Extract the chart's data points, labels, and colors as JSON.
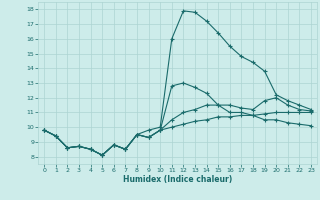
{
  "xlabel": "Humidex (Indice chaleur)",
  "background_color": "#cdecea",
  "grid_color": "#add4d2",
  "line_color": "#1a6b6b",
  "xlim": [
    -0.5,
    23.5
  ],
  "ylim": [
    7.5,
    18.5
  ],
  "yticks": [
    8,
    9,
    10,
    11,
    12,
    13,
    14,
    15,
    16,
    17,
    18
  ],
  "xticks": [
    0,
    1,
    2,
    3,
    4,
    5,
    6,
    7,
    8,
    9,
    10,
    11,
    12,
    13,
    14,
    15,
    16,
    17,
    18,
    19,
    20,
    21,
    22,
    23
  ],
  "line1_x": [
    0,
    1,
    2,
    3,
    4,
    5,
    6,
    7,
    8,
    9,
    10,
    11,
    12,
    13,
    14,
    15,
    16,
    17,
    18,
    19,
    20,
    21,
    22,
    23
  ],
  "line1_y": [
    9.8,
    9.4,
    8.6,
    8.7,
    8.5,
    8.1,
    8.8,
    8.5,
    9.5,
    9.8,
    10.0,
    16.0,
    17.9,
    17.8,
    17.2,
    16.4,
    15.5,
    14.8,
    14.4,
    13.8,
    12.2,
    11.8,
    11.5,
    11.2
  ],
  "line2_x": [
    0,
    1,
    2,
    3,
    4,
    5,
    6,
    7,
    8,
    9,
    10,
    11,
    12,
    13,
    14,
    15,
    16,
    17,
    18,
    19,
    20,
    21,
    22,
    23
  ],
  "line2_y": [
    9.8,
    9.4,
    8.6,
    8.7,
    8.5,
    8.1,
    8.8,
    8.5,
    9.5,
    9.3,
    9.8,
    12.8,
    13.0,
    12.7,
    12.3,
    11.5,
    11.0,
    11.0,
    10.8,
    10.5,
    10.5,
    10.3,
    10.2,
    10.1
  ],
  "line3_x": [
    0,
    1,
    2,
    3,
    4,
    5,
    6,
    7,
    8,
    9,
    10,
    11,
    12,
    13,
    14,
    15,
    16,
    17,
    18,
    19,
    20,
    21,
    22,
    23
  ],
  "line3_y": [
    9.8,
    9.4,
    8.6,
    8.7,
    8.5,
    8.1,
    8.8,
    8.5,
    9.5,
    9.3,
    9.8,
    10.5,
    11.0,
    11.2,
    11.5,
    11.5,
    11.5,
    11.3,
    11.2,
    11.8,
    12.0,
    11.5,
    11.2,
    11.1
  ],
  "line4_x": [
    0,
    1,
    2,
    3,
    4,
    5,
    6,
    7,
    8,
    9,
    10,
    11,
    12,
    13,
    14,
    15,
    16,
    17,
    18,
    19,
    20,
    21,
    22,
    23
  ],
  "line4_y": [
    9.8,
    9.4,
    8.6,
    8.7,
    8.5,
    8.1,
    8.8,
    8.5,
    9.5,
    9.3,
    9.8,
    10.0,
    10.2,
    10.4,
    10.5,
    10.7,
    10.7,
    10.8,
    10.8,
    10.9,
    11.0,
    11.0,
    11.0,
    11.0
  ]
}
